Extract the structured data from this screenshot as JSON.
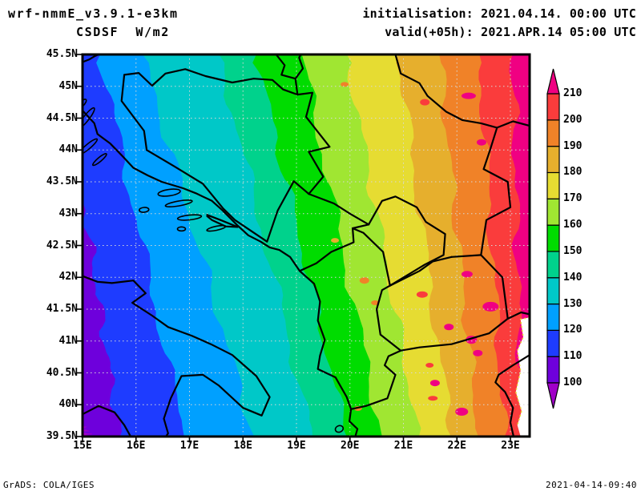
{
  "header": {
    "model": "wrf-nmmE_v3.9.1-e3km",
    "variable": "CSDSF  W/m2",
    "init_line": "initialisation: 2021.04.14. 00:00 UTC",
    "valid_line": "valid(+05h): 2021.APR.14 05:00 UTC"
  },
  "footer": {
    "left": "GrADS: COLA/IGES",
    "right": "2021-04-14-09:40"
  },
  "chart_data": {
    "type": "heatmap",
    "title": "CSDSF W/m2",
    "model": "wrf-nmmE_v3.9.1-e3km",
    "init_time": "2021.04.14. 00:00 UTC",
    "valid_time": "2021.APR.14 05:00 UTC",
    "forecast_hour": "+05h",
    "grid": true,
    "x_axis": {
      "tick_values": [
        15,
        16,
        17,
        18,
        19,
        20,
        21,
        22,
        23
      ],
      "tick_labels": [
        "15E",
        "16E",
        "17E",
        "18E",
        "19E",
        "20E",
        "21E",
        "22E",
        "23E"
      ],
      "range": [
        15,
        23.36
      ]
    },
    "y_axis": {
      "tick_values": [
        45.5,
        45,
        44.5,
        44,
        43.5,
        43,
        42.5,
        42,
        41.5,
        41,
        40.5,
        40,
        39.5
      ],
      "tick_labels": [
        "45.5N",
        "45N",
        "44.5N",
        "44N",
        "43.5N",
        "43N",
        "42.5N",
        "42N",
        "41.5N",
        "41N",
        "40.5N",
        "40N",
        "39.5N"
      ],
      "range": [
        39.5,
        45.5
      ]
    },
    "colorbar": {
      "levels": [
        100,
        110,
        120,
        130,
        140,
        150,
        160,
        170,
        180,
        190,
        200,
        210
      ],
      "band_colors": [
        "#6E00DC",
        "#1E3CFF",
        "#00A0FF",
        "#00C8C8",
        "#00D28C",
        "#00DC00",
        "#A0E632",
        "#E6DC32",
        "#E6AF2D",
        "#F08228",
        "#FA3C3C"
      ],
      "below_color": "#A000C8",
      "above_color": "#F00082",
      "grid_color": "#D8D8D8"
    },
    "isolines": [
      {
        "level": 100,
        "top_lon": null,
        "left_edge_lat": 39.66,
        "bottom_lon": 15.13
      },
      {
        "level": 110,
        "top_lon": null,
        "left_edge_lat": 43.3,
        "bottom_lon": 15.7
      },
      {
        "level": 120,
        "top_lon": 15.33,
        "bottom_lon": 16.9
      },
      {
        "level": 130,
        "top_lon": 16.12,
        "bottom_lon": 18.21
      },
      {
        "level": 140,
        "top_lon": 17.55,
        "bottom_lon": 19.3
      },
      {
        "level": 150,
        "top_lon": 18.25,
        "bottom_lon": 19.94
      },
      {
        "level": 160,
        "top_lon": 19.1,
        "bottom_lon": 20.6
      },
      {
        "level": 170,
        "top_lon": 19.94,
        "bottom_lon": 21.29
      },
      {
        "level": 180,
        "top_lon": 20.9,
        "bottom_lon": 21.89
      },
      {
        "level": 190,
        "top_lon": 21.67,
        "bottom_lon": 22.4
      },
      {
        "level": 200,
        "top_lon": 22.42,
        "bottom_lon": 22.89
      },
      {
        "level": 210,
        "top_lon": 23.04,
        "bottom_lon": 23.22
      }
    ],
    "no_data_region": [
      [
        23.36,
        41.37
      ],
      [
        23.19,
        41.34
      ],
      [
        23.24,
        41.06
      ],
      [
        23.13,
        40.85
      ],
      [
        23.19,
        40.53
      ],
      [
        23.1,
        40.2
      ],
      [
        23.21,
        39.9
      ],
      [
        23.13,
        39.68
      ],
      [
        23.19,
        39.5
      ],
      [
        23.36,
        39.5
      ]
    ],
    "borders": {
      "slovenia_corner": [
        [
          15.0,
          45.38
        ],
        [
          15.12,
          45.42
        ],
        [
          15.22,
          45.47
        ],
        [
          15.3,
          45.5
        ]
      ],
      "adriatic_coast": [
        [
          15.0,
          44.62
        ],
        [
          15.22,
          44.42
        ],
        [
          15.28,
          44.25
        ],
        [
          15.52,
          44.1
        ],
        [
          15.75,
          43.9
        ],
        [
          15.95,
          43.72
        ],
        [
          16.22,
          43.6
        ],
        [
          16.48,
          43.5
        ],
        [
          16.88,
          43.4
        ],
        [
          17.12,
          43.32
        ],
        [
          17.42,
          43.2
        ],
        [
          17.62,
          43.05
        ],
        [
          17.88,
          42.83
        ],
        [
          18.1,
          42.66
        ],
        [
          18.33,
          42.56
        ],
        [
          18.5,
          42.47
        ],
        [
          18.68,
          42.43
        ],
        [
          18.88,
          42.32
        ],
        [
          19.06,
          42.1
        ],
        [
          19.33,
          41.9
        ],
        [
          19.44,
          41.62
        ],
        [
          19.4,
          41.32
        ],
        [
          19.53,
          41.02
        ],
        [
          19.44,
          40.77
        ],
        [
          19.4,
          40.56
        ],
        [
          19.73,
          40.43
        ],
        [
          19.94,
          40.12
        ],
        [
          20.02,
          39.93
        ],
        [
          19.99,
          39.74
        ],
        [
          20.14,
          39.62
        ],
        [
          20.1,
          39.5
        ]
      ],
      "italy_adriatic": [
        [
          15.0,
          42.02
        ],
        [
          15.28,
          41.93
        ],
        [
          15.55,
          41.91
        ],
        [
          15.95,
          41.95
        ],
        [
          16.18,
          41.75
        ],
        [
          15.93,
          41.6
        ],
        [
          16.3,
          41.4
        ],
        [
          16.6,
          41.22
        ],
        [
          17.05,
          41.08
        ],
        [
          17.4,
          40.95
        ],
        [
          17.8,
          40.78
        ],
        [
          18.25,
          40.45
        ],
        [
          18.5,
          40.12
        ],
        [
          18.35,
          39.83
        ],
        [
          18.0,
          39.95
        ],
        [
          17.55,
          40.3
        ],
        [
          17.25,
          40.47
        ],
        [
          16.85,
          40.45
        ],
        [
          16.65,
          40.1
        ],
        [
          16.52,
          39.78
        ],
        [
          16.6,
          39.55
        ],
        [
          16.56,
          39.5
        ]
      ],
      "italy_tyrrhenian": [
        [
          15.0,
          39.85
        ],
        [
          15.3,
          39.98
        ],
        [
          15.6,
          39.88
        ],
        [
          15.78,
          39.68
        ],
        [
          15.9,
          39.5
        ]
      ],
      "bosnia": [
        [
          15.78,
          45.18
        ],
        [
          16.05,
          45.21
        ],
        [
          16.3,
          45.01
        ],
        [
          16.55,
          45.2
        ],
        [
          16.92,
          45.27
        ],
        [
          17.3,
          45.16
        ],
        [
          17.8,
          45.06
        ],
        [
          18.2,
          45.12
        ],
        [
          18.55,
          45.1
        ],
        [
          18.75,
          44.95
        ],
        [
          19.02,
          44.87
        ],
        [
          19.3,
          44.9
        ],
        [
          19.18,
          44.52
        ],
        [
          19.62,
          44.05
        ],
        [
          19.23,
          43.97
        ],
        [
          19.5,
          43.58
        ],
        [
          19.23,
          43.31
        ],
        [
          18.95,
          43.51
        ],
        [
          18.65,
          43.05
        ],
        [
          18.45,
          42.56
        ],
        [
          17.85,
          42.9
        ],
        [
          17.63,
          43.08
        ],
        [
          17.25,
          43.47
        ],
        [
          16.7,
          43.75
        ],
        [
          16.2,
          44.0
        ],
        [
          16.15,
          44.3
        ],
        [
          15.73,
          44.77
        ],
        [
          15.78,
          45.18
        ]
      ],
      "croatia_serbia": [
        [
          18.62,
          45.5
        ],
        [
          18.78,
          45.33
        ],
        [
          18.72,
          45.18
        ],
        [
          18.98,
          45.12
        ],
        [
          19.12,
          45.28
        ],
        [
          19.05,
          45.45
        ],
        [
          19.08,
          45.5
        ]
      ],
      "croatia_serbia_south": [
        [
          18.98,
          45.12
        ],
        [
          19.02,
          44.87
        ]
      ],
      "montenegro_serbia": [
        [
          19.23,
          43.31
        ],
        [
          19.7,
          43.16
        ],
        [
          20.0,
          43.0
        ],
        [
          20.35,
          42.83
        ]
      ],
      "montenegro_albania": [
        [
          19.06,
          42.1
        ],
        [
          19.37,
          42.22
        ],
        [
          19.65,
          42.4
        ],
        [
          20.07,
          42.55
        ],
        [
          20.05,
          42.77
        ],
        [
          20.35,
          42.83
        ]
      ],
      "kosovo": [
        [
          20.35,
          42.83
        ],
        [
          20.6,
          43.2
        ],
        [
          20.85,
          43.27
        ],
        [
          21.25,
          43.1
        ],
        [
          21.42,
          42.87
        ],
        [
          21.78,
          42.68
        ],
        [
          21.75,
          42.35
        ],
        [
          21.4,
          42.2
        ],
        [
          20.75,
          41.87
        ],
        [
          20.62,
          42.4
        ],
        [
          20.25,
          42.7
        ],
        [
          20.05,
          42.77
        ]
      ],
      "serbia_macedonia": [
        [
          20.75,
          41.87
        ],
        [
          21.3,
          42.1
        ],
        [
          21.55,
          42.25
        ],
        [
          21.9,
          42.32
        ]
      ],
      "albania_macedonia": [
        [
          20.75,
          41.87
        ],
        [
          20.6,
          41.8
        ],
        [
          20.5,
          41.5
        ],
        [
          20.57,
          41.1
        ],
        [
          20.95,
          40.85
        ]
      ],
      "albania_greece": [
        [
          20.95,
          40.85
        ],
        [
          20.72,
          40.76
        ],
        [
          20.65,
          40.62
        ],
        [
          20.85,
          40.47
        ],
        [
          20.7,
          40.1
        ],
        [
          20.3,
          39.98
        ],
        [
          20.02,
          39.93
        ]
      ],
      "macedonia_greece": [
        [
          20.95,
          40.85
        ],
        [
          21.3,
          40.9
        ],
        [
          21.9,
          40.95
        ],
        [
          22.6,
          41.12
        ],
        [
          22.95,
          41.35
        ]
      ],
      "macedonia_bulgaria": [
        [
          21.9,
          42.32
        ],
        [
          22.45,
          42.35
        ],
        [
          22.85,
          42.0
        ],
        [
          22.95,
          41.35
        ]
      ],
      "bulgaria_greece": [
        [
          22.95,
          41.35
        ],
        [
          23.2,
          41.45
        ],
        [
          23.36,
          41.42
        ]
      ],
      "serbia_bulgaria": [
        [
          22.75,
          44.35
        ],
        [
          22.62,
          44.0
        ],
        [
          22.5,
          43.7
        ],
        [
          22.95,
          43.5
        ],
        [
          23.0,
          43.1
        ],
        [
          22.55,
          42.9
        ],
        [
          22.45,
          42.35
        ]
      ],
      "serbia_romania": [
        [
          20.85,
          45.5
        ],
        [
          20.95,
          45.2
        ],
        [
          21.3,
          45.05
        ],
        [
          21.45,
          44.85
        ],
        [
          21.8,
          44.6
        ],
        [
          22.1,
          44.47
        ],
        [
          22.45,
          44.42
        ],
        [
          22.75,
          44.35
        ],
        [
          23.05,
          44.45
        ],
        [
          23.36,
          44.38
        ]
      ],
      "greece_aegean_coast": [
        [
          23.36,
          40.78
        ],
        [
          23.05,
          40.62
        ],
        [
          22.78,
          40.47
        ],
        [
          22.72,
          40.35
        ],
        [
          22.9,
          40.2
        ],
        [
          23.05,
          39.95
        ],
        [
          23.0,
          39.72
        ],
        [
          23.06,
          39.5
        ]
      ],
      "peljesac": [
        [
          17.33,
          42.98
        ],
        [
          17.58,
          42.9
        ],
        [
          17.9,
          42.79
        ],
        [
          17.68,
          42.8
        ],
        [
          17.42,
          42.9
        ],
        [
          17.33,
          42.96
        ]
      ]
    },
    "islands": [
      {
        "lon": 15.07,
        "lat": 44.5,
        "rx": 16,
        "ry": 3.5,
        "rot": -52
      },
      {
        "lon": 14.98,
        "lat": 44.72,
        "rx": 8,
        "ry": 3,
        "rot": -45
      },
      {
        "lon": 15.1,
        "lat": 44.05,
        "rx": 15,
        "ry": 3,
        "rot": -40
      },
      {
        "lon": 15.32,
        "lat": 43.85,
        "rx": 11,
        "ry": 2.5,
        "rot": -40
      },
      {
        "lon": 16.62,
        "lat": 43.33,
        "rx": 14,
        "ry": 4,
        "rot": -8
      },
      {
        "lon": 16.8,
        "lat": 43.16,
        "rx": 17,
        "ry": 3,
        "rot": -10
      },
      {
        "lon": 16.15,
        "lat": 43.06,
        "rx": 6,
        "ry": 3,
        "rot": -5
      },
      {
        "lon": 17.0,
        "lat": 42.94,
        "rx": 15,
        "ry": 3,
        "rot": -6
      },
      {
        "lon": 17.5,
        "lat": 42.77,
        "rx": 12,
        "ry": 2.5,
        "rot": -12
      },
      {
        "lon": 16.85,
        "lat": 42.76,
        "rx": 5,
        "ry": 2.5,
        "rot": 0
      },
      {
        "lon": 19.8,
        "lat": 39.62,
        "rx": 5,
        "ry": 4,
        "rot": -20
      }
    ],
    "patches": [
      {
        "lon": 22.22,
        "lat": 44.85,
        "rx": 9,
        "ry": 4,
        "color": "#F00082"
      },
      {
        "lon": 22.46,
        "lat": 44.12,
        "rx": 6,
        "ry": 4,
        "color": "#F00082"
      },
      {
        "lon": 22.63,
        "lat": 41.54,
        "rx": 10,
        "ry": 6,
        "color": "#F00082"
      },
      {
        "lon": 22.19,
        "lat": 42.05,
        "rx": 7,
        "ry": 4,
        "color": "#F00082"
      },
      {
        "lon": 21.85,
        "lat": 41.22,
        "rx": 6,
        "ry": 4,
        "color": "#F00082"
      },
      {
        "lon": 22.27,
        "lat": 41.02,
        "rx": 7,
        "ry": 5,
        "color": "#F00082"
      },
      {
        "lon": 22.39,
        "lat": 40.81,
        "rx": 6,
        "ry": 4,
        "color": "#F00082"
      },
      {
        "lon": 21.59,
        "lat": 40.34,
        "rx": 6,
        "ry": 4,
        "color": "#F00082"
      },
      {
        "lon": 22.09,
        "lat": 39.89,
        "rx": 8,
        "ry": 5,
        "color": "#F00082"
      },
      {
        "lon": 21.4,
        "lat": 44.75,
        "rx": 6,
        "ry": 4,
        "color": "#FA3C3C"
      },
      {
        "lon": 21.35,
        "lat": 41.73,
        "rx": 7,
        "ry": 4,
        "color": "#FA3C3C"
      },
      {
        "lon": 21.49,
        "lat": 40.62,
        "rx": 5,
        "ry": 3,
        "color": "#FA3C3C"
      },
      {
        "lon": 21.55,
        "lat": 40.1,
        "rx": 6,
        "ry": 3,
        "color": "#FA3C3C"
      },
      {
        "lon": 20.27,
        "lat": 41.95,
        "rx": 6,
        "ry": 4,
        "color": "#F08228"
      },
      {
        "lon": 20.47,
        "lat": 41.6,
        "rx": 5,
        "ry": 3,
        "color": "#F08228"
      },
      {
        "lon": 20.15,
        "lat": 39.94,
        "rx": 5,
        "ry": 3,
        "color": "#F08228"
      },
      {
        "lon": 19.9,
        "lat": 45.03,
        "rx": 5,
        "ry": 3,
        "color": "#F08228"
      },
      {
        "lon": 19.72,
        "lat": 42.58,
        "rx": 5,
        "ry": 3,
        "color": "#E6AF2D"
      }
    ]
  }
}
